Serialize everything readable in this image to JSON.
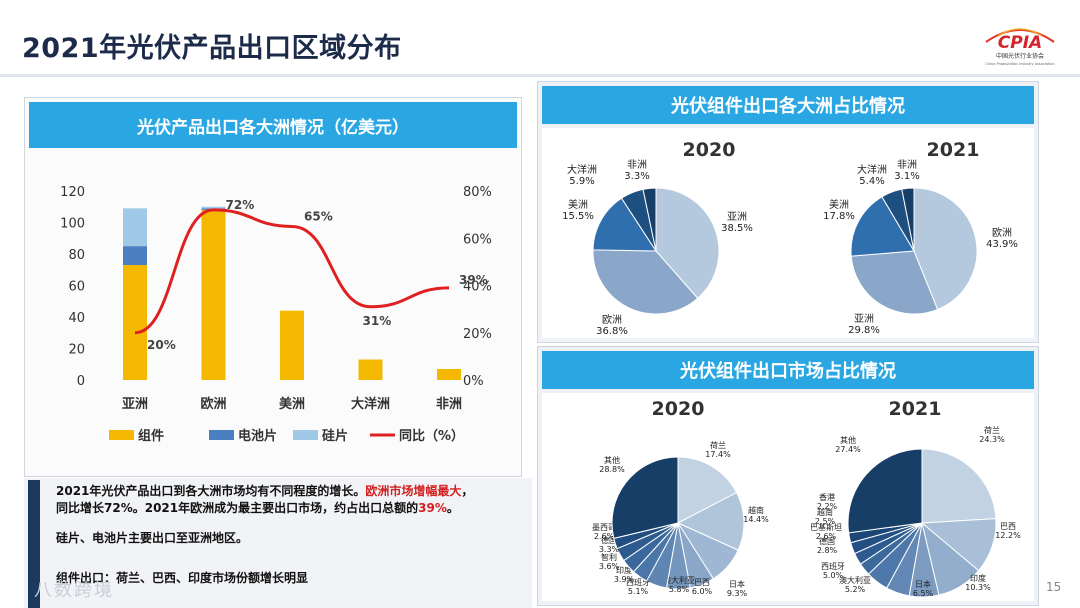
{
  "page": {
    "title": "2021年光伏产品出口区域分布",
    "page_number": "15",
    "watermark": "八数跨境",
    "logo": {
      "name": "CPIA",
      "subtitle": "中国光伏行业协会",
      "subtitle_en": "China Photovoltaic Industry Association"
    }
  },
  "left_chart": {
    "header": "光伏产品出口各大洲情况（亿美元）"
  },
  "top_right": {
    "header": "光伏组件出口各大洲占比情况"
  },
  "bottom_right": {
    "header": "光伏组件出口市场占比情况"
  },
  "notes": {
    "line1_a": "2021年光伏产品出口到各大洲市场均有不同程度的增长。",
    "line1_b": "欧洲市场增幅最大",
    "line1_c": "，",
    "line2_a": "同比增长72%。2021年欧洲成为最主要出口市场，约占出口总额的",
    "line2_b": "39%",
    "line2_c": "。",
    "line3": "硅片、电池片主要出口至亚洲地区。",
    "line4": "组件出口：荷兰、巴西、印度市场份额增长明显"
  },
  "colors": {
    "accent": "#2aa7e3",
    "module": "#f5b800",
    "cell": "#4a7fc1",
    "wafer": "#9fc9e6",
    "yoy": "#e02020"
  },
  "chart_data": [
    {
      "type": "bar",
      "stacked": true,
      "categories": [
        "亚洲",
        "欧洲",
        "美洲",
        "大洋洲",
        "非洲"
      ],
      "series": [
        {
          "name": "组件",
          "color": "#f5b800",
          "values": [
            73,
            108,
            44,
            13,
            7
          ]
        },
        {
          "name": "电池片",
          "color": "#4a7fc1",
          "values": [
            12,
            1,
            0,
            0,
            0
          ]
        },
        {
          "name": "硅片",
          "color": "#9fc9e6",
          "values": [
            24,
            1,
            0,
            0,
            0
          ]
        }
      ],
      "line_series": {
        "name": "同比（%）",
        "color": "#e02020",
        "values": [
          20,
          72,
          65,
          31,
          39
        ],
        "labels": [
          "20%",
          "72%",
          "65%",
          "31%",
          "39%"
        ]
      },
      "y_left": {
        "ticks": [
          0,
          20,
          40,
          60,
          80,
          100,
          120
        ],
        "range": [
          0,
          120
        ]
      },
      "y_right": {
        "ticks": [
          "0%",
          "20%",
          "40%",
          "60%",
          "80%"
        ],
        "range": [
          0,
          80
        ]
      },
      "legend": "bottom"
    },
    {
      "type": "pie",
      "title": "2020",
      "slices": [
        {
          "label": "亚洲",
          "value": 38.5,
          "text": "38.5%",
          "color": "#b5c9de"
        },
        {
          "label": "欧洲",
          "value": 36.8,
          "text": "36.8%",
          "color": "#8aa6c8"
        },
        {
          "label": "美洲",
          "value": 15.5,
          "text": "15.5%",
          "color": "#2f6fae"
        },
        {
          "label": "大洋洲",
          "value": 5.9,
          "text": "5.9%",
          "color": "#1d4f80"
        },
        {
          "label": "非洲",
          "value": 3.3,
          "text": "3.3%",
          "color": "#163e66"
        }
      ]
    },
    {
      "type": "pie",
      "title": "2021",
      "slices": [
        {
          "label": "欧洲",
          "value": 43.9,
          "text": "43.9%",
          "color": "#b5c9de"
        },
        {
          "label": "亚洲",
          "value": 29.8,
          "text": "29.8%",
          "color": "#8aa6c8"
        },
        {
          "label": "美洲",
          "value": 17.8,
          "text": "17.8%",
          "color": "#2f6fae"
        },
        {
          "label": "大洋洲",
          "value": 5.4,
          "text": "5.4%",
          "color": "#1d4f80"
        },
        {
          "label": "非洲",
          "value": 3.1,
          "text": "3.1%",
          "color": "#163e66"
        }
      ]
    },
    {
      "type": "pie",
      "title": "2020",
      "slices": [
        {
          "label": "荷兰",
          "value": 17.4,
          "text": "17.4%",
          "color": "#c2d2e3"
        },
        {
          "label": "越南",
          "value": 14.4,
          "text": "14.4%",
          "color": "#b0c4da"
        },
        {
          "label": "日本",
          "value": 9.3,
          "text": "9.3%",
          "color": "#9fb7d2"
        },
        {
          "label": "巴西",
          "value": 6.0,
          "text": "6.0%",
          "color": "#8aa6c8"
        },
        {
          "label": "澳大利亚",
          "value": 5.8,
          "text": "5.8%",
          "color": "#7596bd"
        },
        {
          "label": "西班牙",
          "value": 5.1,
          "text": "5.1%",
          "color": "#5f85b2"
        },
        {
          "label": "印度",
          "value": 3.9,
          "text": "3.9%",
          "color": "#4a76a8"
        },
        {
          "label": "智利",
          "value": 3.6,
          "text": "3.6%",
          "color": "#3a689c"
        },
        {
          "label": "德国",
          "value": 3.3,
          "text": "3.3%",
          "color": "#2d5b8f"
        },
        {
          "label": "墨西哥",
          "value": 2.6,
          "text": "2.6%",
          "color": "#214d80"
        },
        {
          "label": "其他",
          "value": 28.8,
          "text": "28.8%",
          "color": "#163e66"
        }
      ]
    },
    {
      "type": "pie",
      "title": "2021",
      "slices": [
        {
          "label": "荷兰",
          "value": 24.3,
          "text": "24.3%",
          "color": "#c2d2e3"
        },
        {
          "label": "巴西",
          "value": 12.2,
          "text": "12.2%",
          "color": "#a9bfd7"
        },
        {
          "label": "印度",
          "value": 10.3,
          "text": "10.3%",
          "color": "#92aecc"
        },
        {
          "label": "日本",
          "value": 6.5,
          "text": "6.5%",
          "color": "#7b9bc1"
        },
        {
          "label": "澳大利亚",
          "value": 5.2,
          "text": "5.2%",
          "color": "#6488b5"
        },
        {
          "label": "西班牙",
          "value": 5.0,
          "text": "5.0%",
          "color": "#4e78a9"
        },
        {
          "label": "德国",
          "value": 2.8,
          "text": "2.8%",
          "color": "#3b699c"
        },
        {
          "label": "巴基斯坦",
          "value": 2.6,
          "text": "2.6%",
          "color": "#2d5b8f"
        },
        {
          "label": "越南",
          "value": 2.5,
          "text": "2.5%",
          "color": "#234f82"
        },
        {
          "label": "香港",
          "value": 2.2,
          "text": "2.2%",
          "color": "#1b4675"
        },
        {
          "label": "其他",
          "value": 27.4,
          "text": "27.4%",
          "color": "#163e66"
        }
      ]
    }
  ]
}
